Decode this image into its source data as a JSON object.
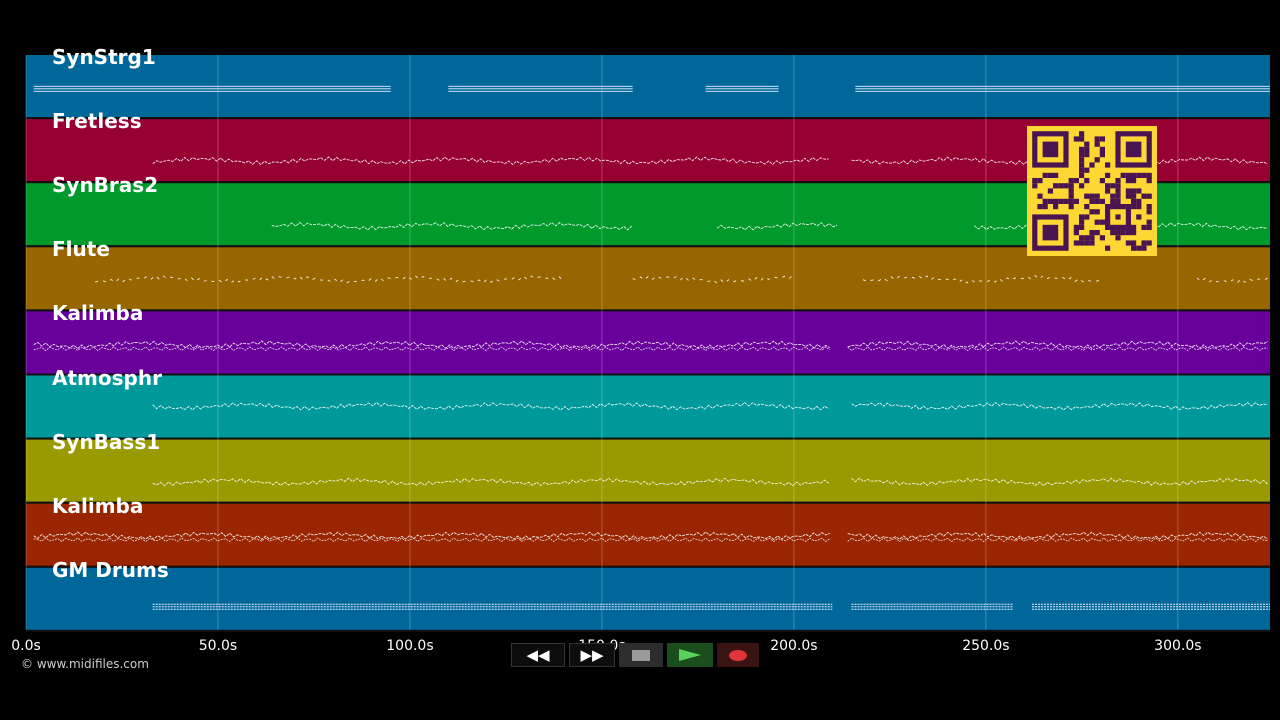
{
  "tracks": [
    {
      "label": "SynStrg1",
      "color": "#00679b"
    },
    {
      "label": "Fretless",
      "color": "#970033"
    },
    {
      "label": "SynBras2",
      "color": "#00992b"
    },
    {
      "label": "Flute",
      "color": "#986600"
    },
    {
      "label": "Kalimba",
      "color": "#6a009b"
    },
    {
      "label": "Atmosphr",
      "color": "#00999b"
    },
    {
      "label": "SynBass1",
      "color": "#999900"
    },
    {
      "label": "Kalimba",
      "color": "#992600"
    },
    {
      "label": "GM Drums",
      "color": "#00679b"
    }
  ],
  "timeline": {
    "ticks": [
      "0.0s",
      "50.0s",
      "100.0s",
      "150.0s",
      "200.0s",
      "250.0s",
      "300.0s"
    ],
    "tick_seconds": [
      0,
      50,
      100,
      150,
      200,
      250,
      300
    ],
    "max_seconds": 324
  },
  "transport": {
    "rewind_icon": "◀◀",
    "ffwd_icon": "▶▶",
    "stop_icon": "stop-square-icon",
    "play_icon": "play-triangle-icon",
    "record_icon": "record-dot-icon"
  },
  "copyright": "© www.midifiles.com",
  "colors": {
    "background": "#000000",
    "qr_bg": "#fdd835",
    "qr_fg": "#4a1450",
    "note": "#ffffff"
  }
}
